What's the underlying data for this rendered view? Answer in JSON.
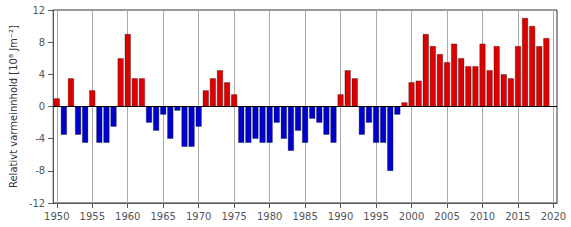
{
  "chart_data": {
    "type": "bar",
    "ylabel": "Relativt varmeinnhold [10⁸ Jm⁻²]",
    "x": [
      1950,
      1951,
      1952,
      1953,
      1954,
      1955,
      1956,
      1957,
      1958,
      1959,
      1960,
      1961,
      1962,
      1963,
      1964,
      1965,
      1966,
      1967,
      1968,
      1969,
      1970,
      1971,
      1972,
      1973,
      1974,
      1975,
      1976,
      1977,
      1978,
      1979,
      1980,
      1981,
      1982,
      1983,
      1984,
      1985,
      1986,
      1987,
      1988,
      1989,
      1990,
      1991,
      1992,
      1993,
      1994,
      1995,
      1996,
      1997,
      1998,
      1999,
      2000,
      2001,
      2002,
      2003,
      2004,
      2005,
      2006,
      2007,
      2008,
      2009,
      2010,
      2011,
      2012,
      2013,
      2014,
      2015,
      2016,
      2017,
      2018,
      2019
    ],
    "values": [
      1.0,
      -3.5,
      3.5,
      -3.5,
      -4.5,
      2.0,
      -4.5,
      -4.5,
      -2.5,
      6.0,
      9.0,
      3.5,
      3.5,
      -2.0,
      -3.0,
      -1.0,
      -4.0,
      -0.5,
      -5.0,
      -5.0,
      -2.5,
      2.0,
      3.5,
      4.5,
      3.0,
      1.5,
      -4.5,
      -4.5,
      -4.0,
      -4.5,
      -4.5,
      -2.0,
      -4.0,
      -5.5,
      -3.0,
      -4.5,
      -1.5,
      -2.0,
      -3.5,
      -4.5,
      1.5,
      4.5,
      3.5,
      -3.5,
      -2.0,
      -4.5,
      -4.5,
      -8.0,
      -1.0,
      0.5,
      3.0,
      3.2,
      9.0,
      7.5,
      6.5,
      5.5,
      7.8,
      6.0,
      5.0,
      5.0,
      7.8,
      4.5,
      7.5,
      4.0,
      3.5,
      7.5,
      11.0,
      10.0,
      7.5,
      8.5
    ],
    "colors": [
      "#dd0000",
      "#0000cc",
      "#dd0000",
      "#0000cc",
      "#0000cc",
      "#dd0000",
      "#0000cc",
      "#0000cc",
      "#0000cc",
      "#dd0000",
      "#dd0000",
      "#dd0000",
      "#dd0000",
      "#0000cc",
      "#0000cc",
      "#0000cc",
      "#0000cc",
      "#0000cc",
      "#0000cc",
      "#0000cc",
      "#0000cc",
      "#dd0000",
      "#dd0000",
      "#dd0000",
      "#dd0000",
      "#dd0000",
      "#0000cc",
      "#0000cc",
      "#0000cc",
      "#0000cc",
      "#0000cc",
      "#0000cc",
      "#0000cc",
      "#0000cc",
      "#0000cc",
      "#0000cc",
      "#0000cc",
      "#0000cc",
      "#0000cc",
      "#0000cc",
      "#dd0000",
      "#dd0000",
      "#dd0000",
      "#0000cc",
      "#0000cc",
      "#0000cc",
      "#0000cc",
      "#0000cc",
      "#0000cc",
      "#dd0000",
      "#dd0000",
      "#dd0000",
      "#dd0000",
      "#dd0000",
      "#dd0000",
      "#dd0000",
      "#dd0000",
      "#dd0000",
      "#dd0000",
      "#dd0000",
      "#dd0000",
      "#dd0000",
      "#dd0000",
      "#dd0000",
      "#dd0000",
      "#dd0000",
      "#dd0000",
      "#dd0000",
      "#dd0000",
      "#dd0000"
    ],
    "xlim": [
      1949.5,
      2020.5
    ],
    "xticks": [
      1950,
      1955,
      1960,
      1965,
      1970,
      1975,
      1980,
      1985,
      1990,
      1995,
      2000,
      2005,
      2010,
      2015,
      2020
    ],
    "ylim": [
      -12,
      12
    ],
    "yticks": [
      -12,
      -8,
      -4,
      0,
      4,
      8,
      12
    ],
    "grid": true
  }
}
